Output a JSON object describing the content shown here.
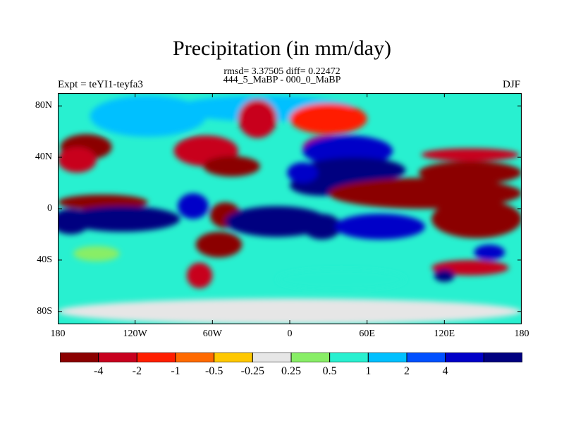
{
  "title": "Precipitation (in mm/day)",
  "subtitle_line1": "rmsd= 3.37505 diff= 0.22472",
  "subtitle_line2": "444_5_MaBP - 000_0_MaBP",
  "left_label": "Expt = teYI1-teyfa3",
  "right_label": "DJF",
  "map": {
    "projection": "cylindrical-equidistant",
    "lon_range": [
      -180,
      180
    ],
    "lat_range": [
      -90,
      90
    ],
    "x_ticks": [
      {
        "lon": -180,
        "label": "180"
      },
      {
        "lon": -120,
        "label": "120W"
      },
      {
        "lon": -60,
        "label": "60W"
      },
      {
        "lon": 0,
        "label": "0"
      },
      {
        "lon": 60,
        "label": "60E"
      },
      {
        "lon": 120,
        "label": "120E"
      },
      {
        "lon": 180,
        "label": "180"
      }
    ],
    "y_ticks": [
      {
        "lat": 80,
        "label": "80N"
      },
      {
        "lat": 40,
        "label": "40N"
      },
      {
        "lat": 0,
        "label": "0"
      },
      {
        "lat": -40,
        "label": "40S"
      },
      {
        "lat": -80,
        "label": "80S"
      }
    ],
    "field_regions": [
      {
        "lon": -110,
        "lat": 72,
        "rx": 45,
        "ry": 16,
        "level": 8
      },
      {
        "lon": -20,
        "lat": 78,
        "rx": 70,
        "ry": 10,
        "level": 8
      },
      {
        "lon": 30,
        "lat": 70,
        "rx": 30,
        "ry": 12,
        "level": 2
      },
      {
        "lon": -25,
        "lat": 70,
        "rx": 15,
        "ry": 15,
        "level": 1
      },
      {
        "lon": -65,
        "lat": 45,
        "rx": 25,
        "ry": 12,
        "level": 1
      },
      {
        "lon": -45,
        "lat": 33,
        "rx": 22,
        "ry": 8,
        "level": 0
      },
      {
        "lon": -158,
        "lat": 48,
        "rx": 20,
        "ry": 10,
        "level": 0
      },
      {
        "lon": -165,
        "lat": 38,
        "rx": 15,
        "ry": 10,
        "level": 1
      },
      {
        "lon": 30,
        "lat": 47,
        "rx": 20,
        "ry": 10,
        "level": 1
      },
      {
        "lon": 45,
        "lat": 45,
        "rx": 35,
        "ry": 12,
        "level": 10
      },
      {
        "lon": 50,
        "lat": 30,
        "rx": 40,
        "ry": 10,
        "level": 11
      },
      {
        "lon": 25,
        "lat": 18,
        "rx": 25,
        "ry": 8,
        "level": 11
      },
      {
        "lon": 10,
        "lat": 28,
        "rx": 12,
        "ry": 8,
        "level": 10
      },
      {
        "lon": 140,
        "lat": 28,
        "rx": 40,
        "ry": 9,
        "level": 0
      },
      {
        "lon": 140,
        "lat": 42,
        "rx": 38,
        "ry": 5,
        "level": 1
      },
      {
        "lon": 105,
        "lat": 12,
        "rx": 75,
        "ry": 12,
        "level": 0
      },
      {
        "lon": 145,
        "lat": -8,
        "rx": 35,
        "ry": 15,
        "level": 0
      },
      {
        "lon": -145,
        "lat": 5,
        "rx": 35,
        "ry": 6,
        "level": 0
      },
      {
        "lon": -130,
        "lat": -8,
        "rx": 45,
        "ry": 10,
        "level": 11
      },
      {
        "lon": -170,
        "lat": -10,
        "rx": 15,
        "ry": 10,
        "level": 11
      },
      {
        "lon": -75,
        "lat": 2,
        "rx": 12,
        "ry": 10,
        "level": 10
      },
      {
        "lon": -50,
        "lat": -5,
        "rx": 12,
        "ry": 10,
        "level": 0
      },
      {
        "lon": -10,
        "lat": -10,
        "rx": 40,
        "ry": 12,
        "level": 11
      },
      {
        "lon": 25,
        "lat": -14,
        "rx": 15,
        "ry": 10,
        "level": 11
      },
      {
        "lon": 70,
        "lat": -14,
        "rx": 35,
        "ry": 10,
        "level": 10
      },
      {
        "lon": -55,
        "lat": -28,
        "rx": 18,
        "ry": 10,
        "level": 0
      },
      {
        "lon": -70,
        "lat": -52,
        "rx": 10,
        "ry": 10,
        "level": 1
      },
      {
        "lon": 140,
        "lat": -46,
        "rx": 30,
        "ry": 6,
        "level": 1
      },
      {
        "lon": 155,
        "lat": -34,
        "rx": 12,
        "ry": 6,
        "level": 10
      },
      {
        "lon": 120,
        "lat": -52,
        "rx": 8,
        "ry": 5,
        "level": 11
      },
      {
        "lon": -150,
        "lat": -35,
        "rx": 18,
        "ry": 6,
        "level": 6
      },
      {
        "lon": 40,
        "lat": -55,
        "rx": 50,
        "ry": 8,
        "level": 7
      },
      {
        "lon": 0,
        "lat": -80,
        "rx": 180,
        "ry": 10,
        "level": 5
      }
    ]
  },
  "colorbar": {
    "colors": [
      "#8b0000",
      "#c8001e",
      "#ff1e00",
      "#ff6a00",
      "#ffc800",
      "#e6e6e6",
      "#88ee66",
      "#28f0d0",
      "#00c0ff",
      "#0050ff",
      "#0000c8",
      "#000080"
    ],
    "labels": [
      "-4",
      "-2",
      "-1",
      "-0.5",
      "-0.25",
      "0.25",
      "0.5",
      "1",
      "2",
      "4"
    ]
  }
}
